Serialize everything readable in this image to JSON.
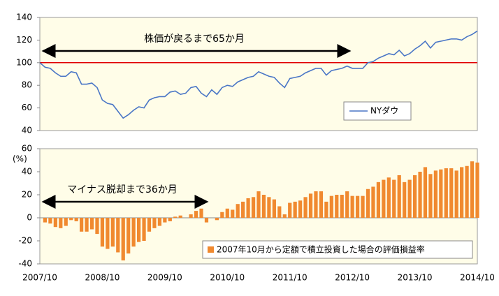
{
  "chart_data": [
    {
      "type": "line",
      "series": [
        {
          "name": "NYダウ",
          "color": "#4a76c6",
          "values": [
            100,
            96,
            95,
            91,
            88,
            88,
            92,
            91,
            81,
            81,
            82,
            78,
            67,
            64,
            63,
            57,
            51,
            54,
            58,
            61,
            60,
            67,
            69,
            70,
            70,
            74,
            75,
            72,
            73,
            78,
            79,
            73,
            70,
            76,
            72,
            78,
            80,
            79,
            83,
            85,
            87,
            88,
            92,
            90,
            88,
            87,
            82,
            78,
            86,
            87,
            88,
            91,
            93,
            95,
            95,
            89,
            93,
            94,
            95,
            97,
            95,
            95,
            95,
            100,
            101,
            104,
            106,
            108,
            107,
            111,
            106,
            108,
            112,
            115,
            119,
            113,
            118,
            119,
            120,
            121,
            121,
            120,
            123,
            125,
            128
          ]
        }
      ],
      "ylim": [
        40,
        140
      ],
      "yticks": [
        40,
        60,
        80,
        100,
        120,
        140
      ],
      "reference_line": {
        "value": 100,
        "color": "#e00000"
      },
      "annotation": "株価が戻るまで65か月"
    },
    {
      "type": "bar",
      "categories": [
        "2007/10",
        null,
        null,
        null,
        null,
        null,
        null,
        null,
        null,
        null,
        null,
        null,
        "2008/10",
        null,
        null,
        null,
        null,
        null,
        null,
        null,
        null,
        null,
        null,
        null,
        "2009/10",
        null,
        null,
        null,
        null,
        null,
        null,
        null,
        null,
        null,
        null,
        null,
        "2010/10",
        null,
        null,
        null,
        null,
        null,
        null,
        null,
        null,
        null,
        null,
        null,
        "2011/10",
        null,
        null,
        null,
        null,
        null,
        null,
        null,
        null,
        null,
        null,
        null,
        "2012/10",
        null,
        null,
        null,
        null,
        null,
        null,
        null,
        null,
        null,
        null,
        null,
        "2013/10",
        null,
        null,
        null,
        null,
        null,
        null,
        null,
        null,
        null,
        null,
        null,
        "2014/10"
      ],
      "series": [
        {
          "name": "2007年10月から定額で積立投資した場合の評価損益率",
          "color": "#f0892f",
          "values": [
            0,
            -4,
            -5,
            -8,
            -9,
            -7,
            -2,
            -3,
            -12,
            -12,
            -10,
            -14,
            -25,
            -27,
            -25,
            -30,
            -37,
            -31,
            -25,
            -21,
            -20,
            -12,
            -9,
            -7,
            -4,
            -3,
            1,
            2,
            0,
            3,
            6,
            8,
            -4,
            0,
            -2,
            5,
            8,
            7,
            12,
            14,
            17,
            18,
            23,
            20,
            18,
            16,
            10,
            3,
            13,
            14,
            15,
            18,
            21,
            23,
            23,
            14,
            19,
            20,
            20,
            23,
            19,
            19,
            19,
            25,
            27,
            31,
            33,
            35,
            33,
            37,
            31,
            33,
            37,
            40,
            44,
            38,
            41,
            42,
            43,
            43,
            41,
            44,
            45,
            49,
            48
          ]
        }
      ],
      "ylim": [
        -40,
        60
      ],
      "yticks": [
        -40,
        -20,
        0,
        20,
        40,
        60
      ],
      "unit_label": "(%)",
      "annotation": "マイナス脱却まで36か月"
    }
  ]
}
